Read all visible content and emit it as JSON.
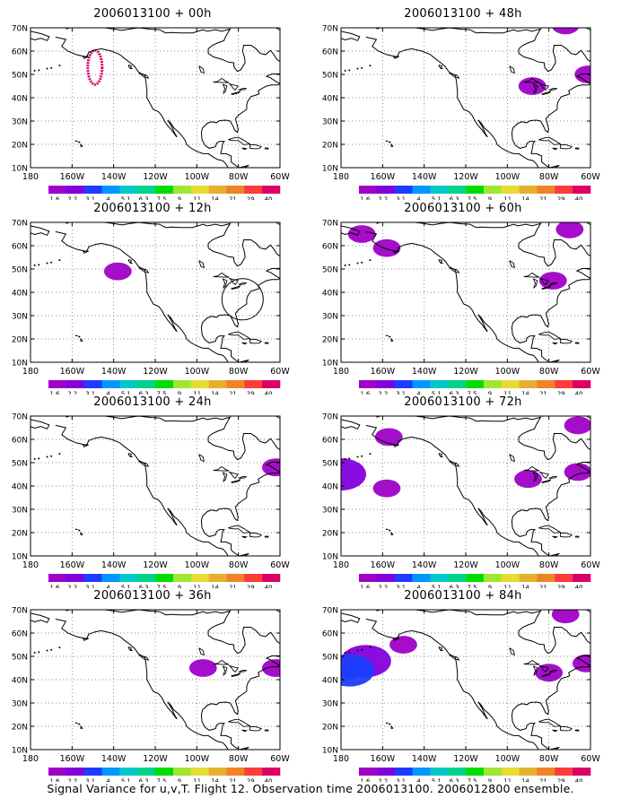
{
  "footer": "Signal Variance for u,v,T. Flight 12. Observation time 2006013100. 2006012800 ensemble.",
  "lon_ticks": [
    "180",
    "160W",
    "140W",
    "120W",
    "100W",
    "80W",
    "60W"
  ],
  "lat_ticks": [
    "10N",
    "20N",
    "30N",
    "40N",
    "50N",
    "60N",
    "70N"
  ],
  "colorbar": {
    "labels": [
      "1.6",
      "2.2",
      "3.1",
      "4",
      "5.1",
      "6.3",
      "7.5",
      "9",
      "11",
      "14",
      "21",
      "29",
      "40"
    ],
    "colors": [
      "#a000c8",
      "#8200dc",
      "#1e3cff",
      "#0096ff",
      "#00c8c8",
      "#00d28c",
      "#00dc00",
      "#a0e632",
      "#e6dc32",
      "#e6af2d",
      "#f08228",
      "#fa3c3c",
      "#dc0064"
    ]
  },
  "chart_data": [
    {
      "type": "heatmap",
      "title": "2006013100 + 00h",
      "xlim": [
        "180",
        "60W"
      ],
      "ylim": [
        "10N",
        "70N"
      ],
      "grid": true,
      "features": [
        {
          "kind": "ring",
          "lon": -149,
          "lat": 53,
          "value": 40,
          "color": "#dc0064"
        }
      ]
    },
    {
      "type": "heatmap",
      "title": "2006013100 + 12h",
      "xlim": [
        "180",
        "60W"
      ],
      "ylim": [
        "10N",
        "70N"
      ],
      "grid": true,
      "features": [
        {
          "kind": "blob",
          "lon": -138,
          "lat": 49,
          "value": 1.6
        },
        {
          "kind": "circle",
          "lon": -78,
          "lat": 37
        }
      ]
    },
    {
      "type": "heatmap",
      "title": "2006013100 + 24h",
      "xlim": [
        "180",
        "60W"
      ],
      "ylim": [
        "10N",
        "70N"
      ],
      "grid": true,
      "features": [
        {
          "kind": "blob",
          "lon": -62,
          "lat": 48,
          "value": 1.6
        }
      ]
    },
    {
      "type": "heatmap",
      "title": "2006013100 + 36h",
      "xlim": [
        "180",
        "60W"
      ],
      "ylim": [
        "10N",
        "70N"
      ],
      "grid": true,
      "features": [
        {
          "kind": "blob",
          "lon": -97,
          "lat": 45,
          "value": 1.6
        },
        {
          "kind": "blob",
          "lon": -62,
          "lat": 45,
          "value": 1.6
        }
      ]
    },
    {
      "type": "heatmap",
      "title": "2006013100 + 48h",
      "xlim": [
        "180",
        "60W"
      ],
      "ylim": [
        "10N",
        "70N"
      ],
      "grid": true,
      "features": [
        {
          "kind": "blob",
          "lon": -88,
          "lat": 45,
          "value": 1.6
        },
        {
          "kind": "blob",
          "lon": -61,
          "lat": 50,
          "value": 1.6
        },
        {
          "kind": "blob",
          "lon": -72,
          "lat": 71,
          "value": 1.6
        }
      ]
    },
    {
      "type": "heatmap",
      "title": "2006013100 + 60h",
      "xlim": [
        "180",
        "60W"
      ],
      "ylim": [
        "10N",
        "70N"
      ],
      "grid": true,
      "features": [
        {
          "kind": "blob",
          "lon": -70,
          "lat": 67,
          "value": 1.6
        },
        {
          "kind": "blob",
          "lon": -158,
          "lat": 59,
          "value": 1.6
        },
        {
          "kind": "blob",
          "lon": -170,
          "lat": 65,
          "value": 1.6
        },
        {
          "kind": "blob",
          "lon": -78,
          "lat": 45,
          "value": 1.6
        }
      ]
    },
    {
      "type": "heatmap",
      "title": "2006013100 + 72h",
      "xlim": [
        "180",
        "60W"
      ],
      "ylim": [
        "10N",
        "70N"
      ],
      "grid": true,
      "features": [
        {
          "kind": "blob",
          "lon": -157,
          "lat": 61,
          "value": 1.6
        },
        {
          "kind": "blob",
          "lon": -180,
          "lat": 45,
          "value": 2.2
        },
        {
          "kind": "blob",
          "lon": -158,
          "lat": 39,
          "value": 1.6
        },
        {
          "kind": "blob",
          "lon": -90,
          "lat": 43,
          "value": 1.6
        },
        {
          "kind": "blob",
          "lon": -66,
          "lat": 46,
          "value": 1.6
        },
        {
          "kind": "blob",
          "lon": -66,
          "lat": 66,
          "value": 1.6
        }
      ]
    },
    {
      "type": "heatmap",
      "title": "2006013100 + 84h",
      "xlim": [
        "180",
        "60W"
      ],
      "ylim": [
        "10N",
        "70N"
      ],
      "grid": true,
      "features": [
        {
          "kind": "blob",
          "lon": -168,
          "lat": 48,
          "value": 2.2
        },
        {
          "kind": "blob",
          "lon": -176,
          "lat": 44,
          "value": 3.1
        },
        {
          "kind": "blob",
          "lon": -150,
          "lat": 55,
          "value": 1.6
        },
        {
          "kind": "blob",
          "lon": -80,
          "lat": 43,
          "value": 1.6
        },
        {
          "kind": "blob",
          "lon": -72,
          "lat": 68,
          "value": 1.6
        },
        {
          "kind": "blob",
          "lon": -62,
          "lat": 47,
          "value": 1.6
        }
      ]
    }
  ]
}
